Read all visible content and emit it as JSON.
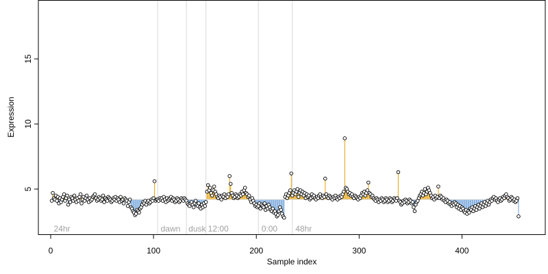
{
  "chart_data": {
    "type": "scatter",
    "title": "",
    "xlabel": "Sample index",
    "ylabel": "Expression",
    "xlim": [
      -12,
      481
    ],
    "ylim": [
      1.5,
      19.5
    ],
    "x_ticks": [
      0,
      100,
      200,
      300,
      400
    ],
    "y_ticks": [
      5,
      10,
      15
    ],
    "baseline": 4.2,
    "colors": {
      "above": "#e69f00",
      "below": "#6a9ed8",
      "point_fill": "#ffffff",
      "point_stroke": "#000000",
      "divider": "#d8d8d8",
      "group_label": "#a0a0a0"
    },
    "group_boundaries": [
      104,
      132,
      151,
      202,
      235
    ],
    "group_labels": [
      {
        "text": "24hr",
        "x": 3
      },
      {
        "text": "dawn",
        "x": 107
      },
      {
        "text": "dusk",
        "x": 134
      },
      {
        "text": "12:00",
        "x": 153
      },
      {
        "text": "0:00",
        "x": 205
      },
      {
        "text": "48hr",
        "x": 238
      }
    ],
    "y_values": [
      4.1,
      4.7,
      4.3,
      4.2,
      4.5,
      4.1,
      4.4,
      3.9,
      4.3,
      4.0,
      4.2,
      4.4,
      4.6,
      4.1,
      4.3,
      4.5,
      3.8,
      4.2,
      4.0,
      4.4,
      4.3,
      4.1,
      4.5,
      4.2,
      4.0,
      4.3,
      4.1,
      4.4,
      4.6,
      3.9,
      4.2,
      4.4,
      4.1,
      4.3,
      4.5,
      4.2,
      4.0,
      4.3,
      4.1,
      4.2,
      4.4,
      4.5,
      4.6,
      4.3,
      4.1,
      4.2,
      4.4,
      4.3,
      4.1,
      4.2,
      4.5,
      4.0,
      4.3,
      4.2,
      4.1,
      4.4,
      4.3,
      4.2,
      4.0,
      4.1,
      4.3,
      4.2,
      4.4,
      4.1,
      4.3,
      4.2,
      4.0,
      4.4,
      4.1,
      4.2,
      3.9,
      4.3,
      4.2,
      4.1,
      3.7,
      4.0,
      4.2,
      3.6,
      3.5,
      3.3,
      3.2,
      3.0,
      3.1,
      3.4,
      3.3,
      3.2,
      3.5,
      3.6,
      3.8,
      4.0,
      3.9,
      4.1,
      3.8,
      4.0,
      4.1,
      3.9,
      4.0,
      4.2,
      4.1,
      4.3,
      5.6,
      4.1,
      4.2,
      4.2,
      4.1,
      4.3,
      4.2,
      4.3,
      4.1,
      4.4,
      4.2,
      4.0,
      4.3,
      4.1,
      4.2,
      4.3,
      4.4,
      4.1,
      4.3,
      4.2,
      4.0,
      4.1,
      4.3,
      4.2,
      4.0,
      4.1,
      4.3,
      4.2,
      4.1,
      4.3,
      4.2,
      4.1,
      3.9,
      3.8,
      3.7,
      3.9,
      4.0,
      3.8,
      3.6,
      3.9,
      4.1,
      3.8,
      3.7,
      3.9,
      3.6,
      3.5,
      3.8,
      3.6,
      3.9,
      3.7,
      4.0,
      4.8,
      5.3,
      4.9,
      5.1,
      4.7,
      4.5,
      4.9,
      5.2,
      4.8,
      4.6,
      4.4,
      4.3,
      4.5,
      4.4,
      4.2,
      4.5,
      4.4,
      4.6,
      4.3,
      4.5,
      4.4,
      4.6,
      6.0,
      5.4,
      4.7,
      4.5,
      4.3,
      4.4,
      4.6,
      4.5,
      4.3,
      4.4,
      4.6,
      4.5,
      4.8,
      4.6,
      4.9,
      5.1,
      4.7,
      4.6,
      4.4,
      4.5,
      4.2,
      4.0,
      4.3,
      4.1,
      3.9,
      3.7,
      3.8,
      3.6,
      3.7,
      3.9,
      3.5,
      3.8,
      3.7,
      3.6,
      3.9,
      3.4,
      3.7,
      3.5,
      3.8,
      3.6,
      3.4,
      3.3,
      3.5,
      3.2,
      3.3,
      3.1,
      2.9,
      3.0,
      3.3,
      3.6,
      3.4,
      3.1,
      2.9,
      2.8,
      4.4,
      4.6,
      4.3,
      4.5,
      4.7,
      4.9,
      6.2,
      4.5,
      4.7,
      4.9,
      4.6,
      4.8,
      5.0,
      4.4,
      4.7,
      4.9,
      4.6,
      4.8,
      4.5,
      4.7,
      4.3,
      4.6,
      4.4,
      4.5,
      4.2,
      4.3,
      4.6,
      4.4,
      4.5,
      4.3,
      4.2,
      4.4,
      4.3,
      4.5,
      4.6,
      4.4,
      4.3,
      4.5,
      4.4,
      5.8,
      4.6,
      4.4,
      4.3,
      4.5,
      4.4,
      4.3,
      4.2,
      4.4,
      4.3,
      4.5,
      4.3,
      4.2,
      4.4,
      4.3,
      4.5,
      4.4,
      4.6,
      4.8,
      8.9,
      5.1,
      5.0,
      4.8,
      4.6,
      4.7,
      4.5,
      4.6,
      4.4,
      4.3,
      4.5,
      4.4,
      4.3,
      4.2,
      4.4,
      4.3,
      4.5,
      4.7,
      4.6,
      4.8,
      4.5,
      4.7,
      4.9,
      5.5,
      4.7,
      4.6,
      4.4,
      4.5,
      4.3,
      4.2,
      4.1,
      4.3,
      4.2,
      4.0,
      4.2,
      4.1,
      4.3,
      4.2,
      4.0,
      4.1,
      4.3,
      4.2,
      4.0,
      4.1,
      4.3,
      4.2,
      4.0,
      4.1,
      4.3,
      4.2,
      4.1,
      4.3,
      6.3,
      4.1,
      4.0,
      3.8,
      3.9,
      4.1,
      4.0,
      4.2,
      4.1,
      3.9,
      4.0,
      4.2,
      4.1,
      3.9,
      4.0,
      3.6,
      3.3,
      3.8,
      4.0,
      4.1,
      4.3,
      4.5,
      4.6,
      4.8,
      4.5,
      4.7,
      5.0,
      4.6,
      4.8,
      5.1,
      4.9,
      4.7,
      4.5,
      4.3,
      4.4,
      4.2,
      4.5,
      4.3,
      4.4,
      5.2,
      4.3,
      4.5,
      4.4,
      4.2,
      4.3,
      4.1,
      4.0,
      4.2,
      4.1,
      3.9,
      4.0,
      3.8,
      3.7,
      3.9,
      3.8,
      4.0,
      3.9,
      3.6,
      3.8,
      3.5,
      3.7,
      3.4,
      3.6,
      3.5,
      3.3,
      3.2,
      3.4,
      3.1,
      3.3,
      3.2,
      3.5,
      3.4,
      3.6,
      3.3,
      3.5,
      3.7,
      3.4,
      3.6,
      3.8,
      3.5,
      3.7,
      3.9,
      3.6,
      3.8,
      4.0,
      3.7,
      3.9,
      4.1,
      3.8,
      4.0,
      4.2,
      4.1,
      4.3,
      4.4,
      4.2,
      4.3,
      4.1,
      4.0,
      4.2,
      4.3,
      4.1,
      4.2,
      4.4,
      4.3,
      4.5,
      4.6,
      4.4,
      4.3,
      4.1,
      4.2,
      4.4,
      4.3,
      4.1,
      4.2,
      4.0,
      4.1,
      4.3,
      2.9
    ]
  }
}
